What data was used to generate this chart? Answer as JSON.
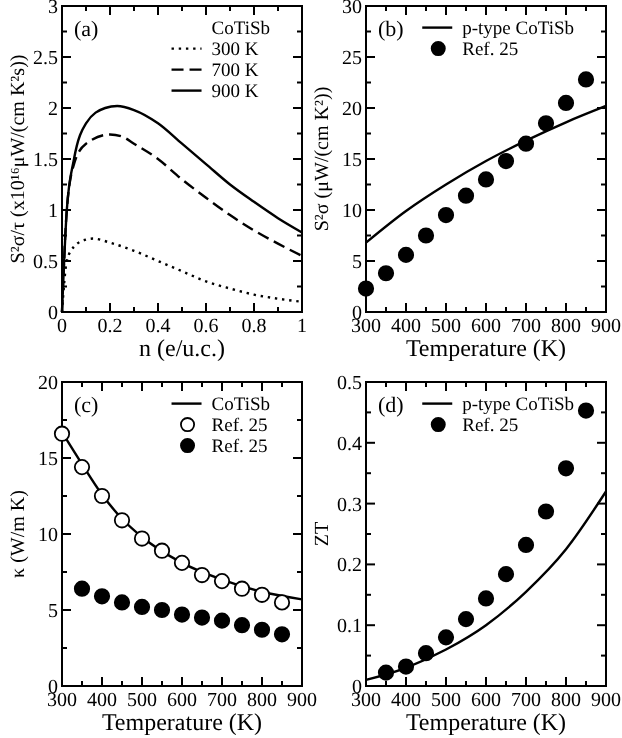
{
  "chart_data": [
    {
      "type": "line",
      "xlabel": "n (e/u.c.)",
      "ylabel": "S²σ/τ (x10¹⁶μW/(cm K²s))",
      "legend_title": "CoTiSb",
      "annotations": [
        "(a)"
      ],
      "legend": "top right",
      "xlim": [
        0,
        1
      ],
      "ylim": [
        0,
        3
      ],
      "xticks": [
        0,
        {
          "value": 0.1,
          "label": null
        },
        0.2,
        {
          "value": 0.3,
          "label": null
        },
        0.4,
        {
          "value": 0.5,
          "label": null
        },
        0.6,
        {
          "value": 0.7,
          "label": null
        },
        0.8,
        {
          "value": 0.9,
          "label": null
        },
        1
      ],
      "yticks": [
        0,
        {
          "value": 0.25,
          "label": null
        },
        0.5,
        {
          "value": 0.75,
          "label": null
        },
        1,
        {
          "value": 1.25,
          "label": null
        },
        1.5,
        {
          "value": 1.75,
          "label": null
        },
        2,
        {
          "value": 2.25,
          "label": null
        },
        2.5,
        {
          "value": 2.75,
          "label": null
        },
        3
      ],
      "series": [
        {
          "name": "300 K",
          "color": "#000000",
          "line_style": "dotted",
          "x": [
            0,
            0.02,
            0.05,
            0.1,
            0.13,
            0.2,
            0.3,
            0.4,
            0.5,
            0.6,
            0.7,
            0.8,
            0.9,
            1
          ],
          "values": [
            0,
            0.5,
            0.64,
            0.71,
            0.72,
            0.68,
            0.6,
            0.5,
            0.4,
            0.3,
            0.23,
            0.17,
            0.13,
            0.1
          ]
        },
        {
          "name": "700 K",
          "color": "#000000",
          "line_style": "dashed",
          "x": [
            0,
            0.02,
            0.05,
            0.1,
            0.2,
            0.25,
            0.3,
            0.4,
            0.5,
            0.6,
            0.7,
            0.8,
            0.9,
            1
          ],
          "values": [
            0,
            1.0,
            1.45,
            1.65,
            1.74,
            1.72,
            1.65,
            1.5,
            1.3,
            1.12,
            0.95,
            0.8,
            0.67,
            0.55
          ]
        },
        {
          "name": "900 K",
          "color": "#000000",
          "line_style": "solid",
          "x": [
            0,
            0.02,
            0.05,
            0.1,
            0.18,
            0.23,
            0.3,
            0.4,
            0.5,
            0.6,
            0.7,
            0.8,
            0.9,
            1
          ],
          "values": [
            0,
            1.0,
            1.5,
            1.85,
            2.0,
            2.02,
            1.98,
            1.85,
            1.65,
            1.45,
            1.25,
            1.08,
            0.92,
            0.78
          ]
        }
      ]
    },
    {
      "type": "line",
      "xlabel": "Temperature (K)",
      "ylabel": "S²σ (μW/(cm K²))",
      "annotations": [
        "(b)"
      ],
      "legend": "top right",
      "xlim": [
        300,
        900
      ],
      "ylim": [
        0,
        30
      ],
      "xticks": [
        300,
        {
          "value": 350,
          "label": null
        },
        400,
        {
          "value": 450,
          "label": null
        },
        500,
        {
          "value": 550,
          "label": null
        },
        600,
        {
          "value": 650,
          "label": null
        },
        700,
        {
          "value": 750,
          "label": null
        },
        800,
        {
          "value": 850,
          "label": null
        },
        900
      ],
      "yticks": [
        0,
        {
          "value": 2.5,
          "label": null
        },
        5,
        {
          "value": 7.5,
          "label": null
        },
        10,
        {
          "value": 12.5,
          "label": null
        },
        15,
        {
          "value": 17.5,
          "label": null
        },
        20,
        {
          "value": 22.5,
          "label": null
        },
        25,
        {
          "value": 27.5,
          "label": null
        },
        30
      ],
      "series": [
        {
          "name": "p-type CoTiSb",
          "type": "line",
          "color": "#000000",
          "line_style": "solid",
          "x": [
            300,
            400,
            500,
            600,
            700,
            800,
            900
          ],
          "values": [
            6.8,
            9.9,
            12.5,
            14.8,
            16.8,
            18.6,
            20.2
          ]
        },
        {
          "name": "Ref. 25",
          "type": "scatter",
          "marker": "circle",
          "color": "#000000",
          "x": [
            300,
            350,
            400,
            450,
            500,
            550,
            600,
            650,
            700,
            750,
            800,
            850
          ],
          "values": [
            2.3,
            3.8,
            5.6,
            7.5,
            9.5,
            11.4,
            13.0,
            14.8,
            16.5,
            18.5,
            20.5,
            22.8
          ]
        }
      ]
    },
    {
      "type": "line",
      "xlabel": "Temperature (K)",
      "ylabel": "κ (W/m K)",
      "annotations": [
        "(c)"
      ],
      "legend": "top right",
      "xlim": [
        300,
        900
      ],
      "ylim": [
        0,
        20
      ],
      "xticks": [
        300,
        {
          "value": 350,
          "label": null
        },
        400,
        {
          "value": 450,
          "label": null
        },
        500,
        {
          "value": 550,
          "label": null
        },
        600,
        {
          "value": 650,
          "label": null
        },
        700,
        {
          "value": 750,
          "label": null
        },
        800,
        {
          "value": 850,
          "label": null
        },
        900
      ],
      "yticks": [
        0,
        {
          "value": 2.5,
          "label": null
        },
        5,
        {
          "value": 7.5,
          "label": null
        },
        10,
        {
          "value": 12.5,
          "label": null
        },
        15,
        {
          "value": 17.5,
          "label": null
        },
        20
      ],
      "series": [
        {
          "name": "CoTiSb",
          "type": "line",
          "color": "#000000",
          "line_style": "solid",
          "x": [
            300,
            350,
            400,
            450,
            500,
            600,
            700,
            800,
            900
          ],
          "values": [
            16.7,
            14.6,
            12.6,
            11.0,
            9.8,
            8.1,
            7.0,
            6.2,
            5.7
          ]
        },
        {
          "name": "Ref. 25",
          "type": "scatter",
          "marker": "circle",
          "color": "#ffffff",
          "x": [
            300,
            350,
            400,
            450,
            500,
            550,
            600,
            650,
            700,
            750,
            800,
            850
          ],
          "values": [
            16.6,
            14.4,
            12.5,
            10.9,
            9.7,
            8.9,
            8.1,
            7.3,
            6.9,
            6.4,
            6.0,
            5.5
          ]
        },
        {
          "name": "Ref. 25",
          "type": "scatter",
          "marker": "circle",
          "color": "#000000",
          "x": [
            350,
            400,
            450,
            500,
            550,
            600,
            650,
            700,
            750,
            800,
            850
          ],
          "values": [
            6.4,
            5.9,
            5.5,
            5.2,
            5.0,
            4.7,
            4.5,
            4.3,
            4.0,
            3.7,
            3.4
          ]
        }
      ]
    },
    {
      "type": "line",
      "xlabel": "Temperature (K)",
      "ylabel": "ZT",
      "annotations": [
        "(d)"
      ],
      "legend": "top right",
      "xlim": [
        300,
        900
      ],
      "ylim": [
        0,
        0.5
      ],
      "xticks": [
        300,
        {
          "value": 350,
          "label": null
        },
        400,
        {
          "value": 450,
          "label": null
        },
        500,
        {
          "value": 550,
          "label": null
        },
        600,
        {
          "value": 650,
          "label": null
        },
        700,
        {
          "value": 750,
          "label": null
        },
        800,
        {
          "value": 850,
          "label": null
        },
        900
      ],
      "yticks": [
        0,
        {
          "value": 0.05,
          "label": null
        },
        0.1,
        {
          "value": 0.15,
          "label": null
        },
        0.2,
        {
          "value": 0.25,
          "label": null
        },
        0.3,
        {
          "value": 0.35,
          "label": null
        },
        0.4,
        {
          "value": 0.45,
          "label": null
        },
        0.5
      ],
      "series": [
        {
          "name": "p-type CoTiSb",
          "type": "line",
          "color": "#000000",
          "line_style": "solid",
          "x": [
            300,
            400,
            500,
            600,
            700,
            800,
            900
          ],
          "values": [
            0.01,
            0.03,
            0.06,
            0.1,
            0.155,
            0.225,
            0.32
          ]
        },
        {
          "name": "Ref. 25",
          "type": "scatter",
          "marker": "circle",
          "color": "#000000",
          "x": [
            350,
            400,
            450,
            500,
            550,
            600,
            650,
            700,
            750,
            800,
            850
          ],
          "values": [
            0.022,
            0.032,
            0.054,
            0.08,
            0.11,
            0.144,
            0.184,
            0.232,
            0.287,
            0.358,
            0.453
          ]
        }
      ]
    }
  ]
}
